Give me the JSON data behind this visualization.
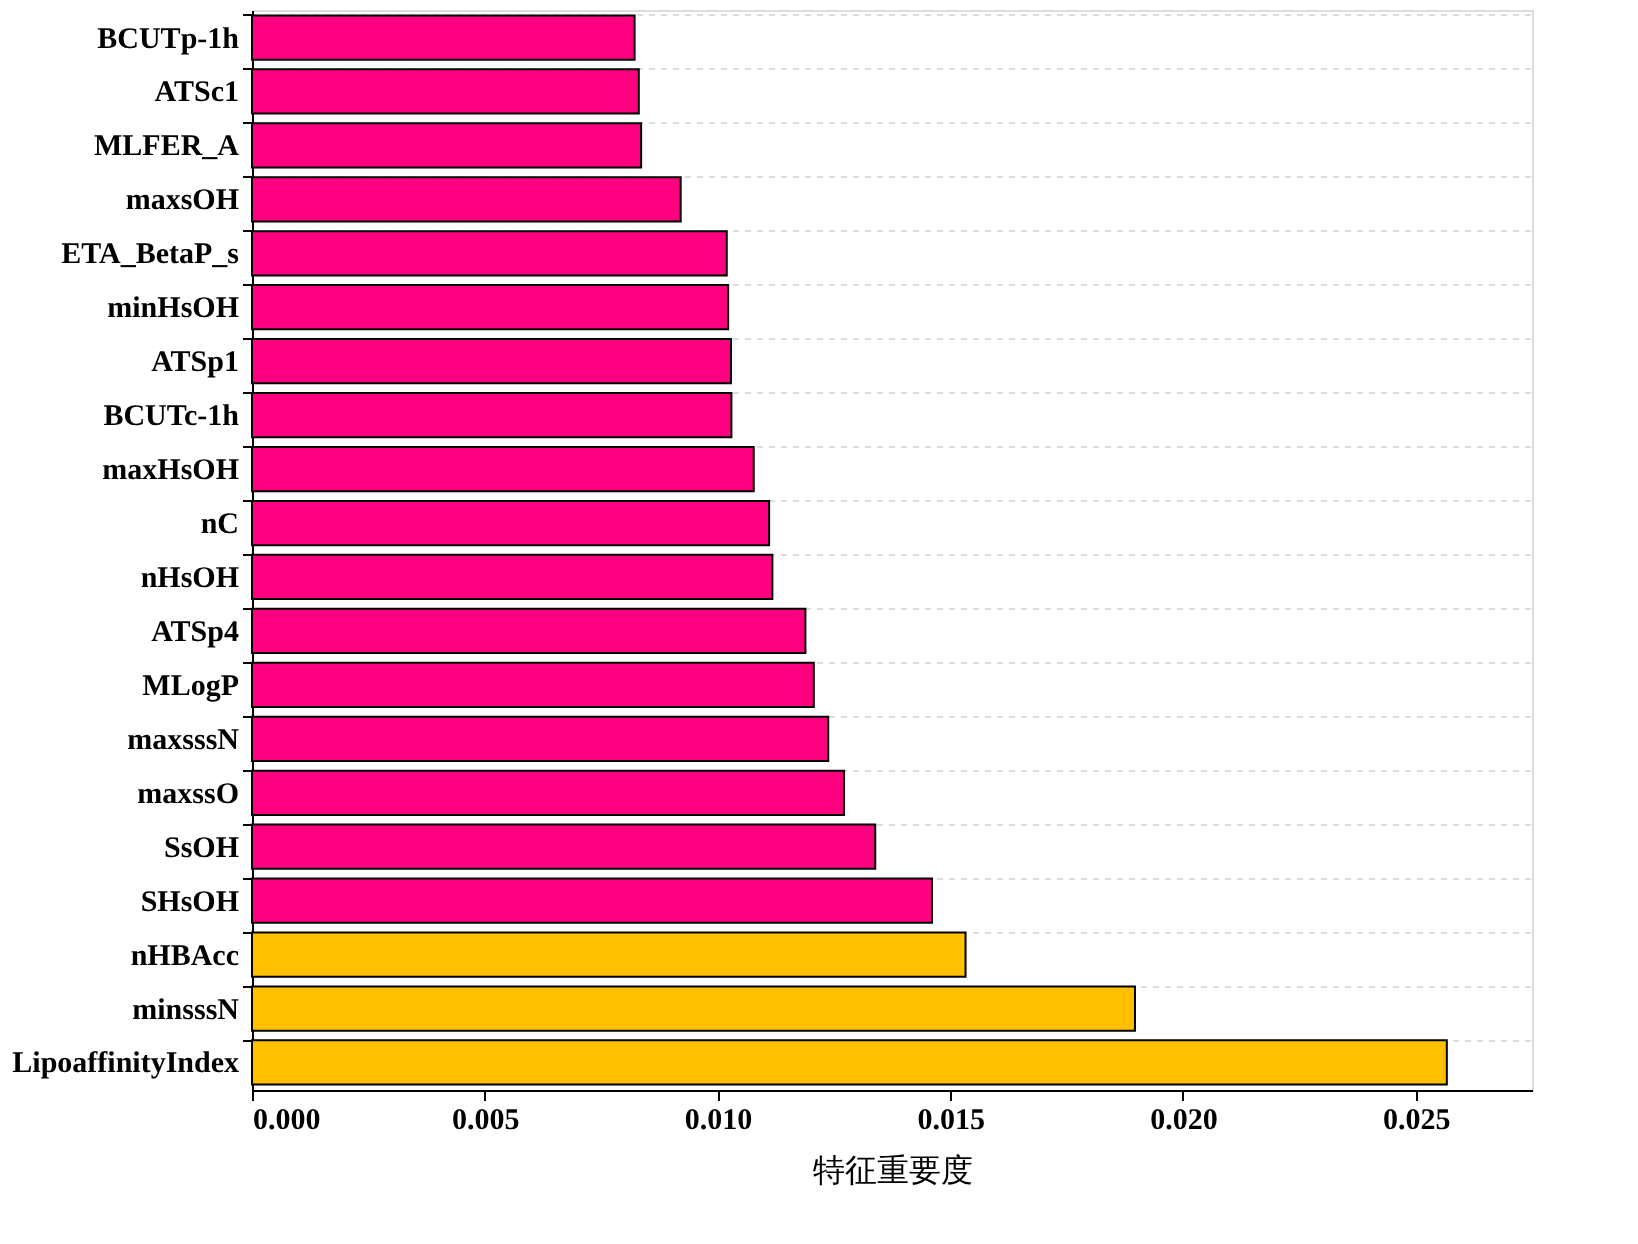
{
  "chart_data": {
    "type": "bar",
    "orientation": "horizontal",
    "xlabel": "特征重要度",
    "categories": [
      "BCUTp-1h",
      "ATSc1",
      "MLFER_A",
      "maxsOH",
      "ETA_BetaP_s",
      "minHsOH",
      "ATSp1",
      "BCUTc-1h",
      "maxHsOH",
      "nC",
      "nHsOH",
      "ATSp4",
      "MLogP",
      "maxsssN",
      "maxssO",
      "SsOH",
      "SHsOH",
      "nHBAcc",
      "minsssN",
      "LipoaffinityIndex"
    ],
    "values": [
      0.00822,
      0.00831,
      0.00836,
      0.00921,
      0.0102,
      0.01023,
      0.01029,
      0.0103,
      0.01078,
      0.01111,
      0.01118,
      0.01189,
      0.01207,
      0.01238,
      0.01272,
      0.01339,
      0.01461,
      0.01533,
      0.01897,
      0.02567
    ],
    "colors": [
      "#ff0080",
      "#ff0080",
      "#ff0080",
      "#ff0080",
      "#ff0080",
      "#ff0080",
      "#ff0080",
      "#ff0080",
      "#ff0080",
      "#ff0080",
      "#ff0080",
      "#ff0080",
      "#ff0080",
      "#ff0080",
      "#ff0080",
      "#ff0080",
      "#ff0080",
      "#ffc000",
      "#ffc000",
      "#ffc000"
    ],
    "xlim": [
      0,
      0.0275
    ],
    "xticks": [
      {
        "value": 0,
        "label": "0.000"
      },
      0.005,
      {
        "value": 0.01,
        "label": "0.010"
      },
      0.015,
      {
        "value": 0.02,
        "label": "0.020"
      },
      0.025
    ],
    "grid": "y"
  }
}
